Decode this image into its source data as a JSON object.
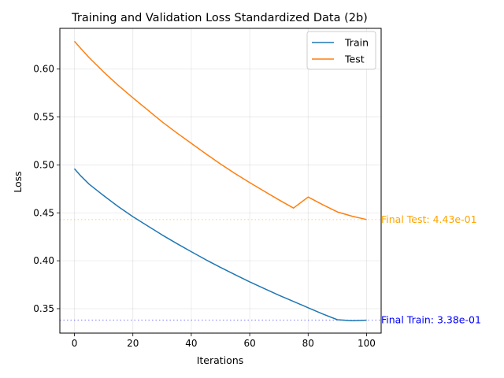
{
  "chart_data": {
    "type": "line",
    "title": "Training and Validation Loss Standardized Data (2b)",
    "xlabel": "Iterations",
    "ylabel": "Loss",
    "xlim": [
      -5,
      105
    ],
    "ylim": [
      0.3245,
      0.6425
    ],
    "xticks": [
      0,
      20,
      40,
      60,
      80,
      100
    ],
    "xtick_labels": [
      "0",
      "20",
      "40",
      "60",
      "80",
      "100"
    ],
    "yticks": [
      0.35,
      0.4,
      0.45,
      0.5,
      0.55,
      0.6
    ],
    "ytick_labels": [
      "0.35",
      "0.40",
      "0.45",
      "0.50",
      "0.55",
      "0.60"
    ],
    "grid": true,
    "legend_position": "upper right",
    "series": [
      {
        "name": "Train",
        "color": "#1f77b4",
        "x": [
          0,
          2,
          5,
          10,
          15,
          20,
          25,
          30,
          35,
          40,
          45,
          50,
          55,
          60,
          65,
          70,
          75,
          80,
          85,
          90,
          95,
          100
        ],
        "y": [
          0.496,
          0.489,
          0.48,
          0.468,
          0.4565,
          0.446,
          0.4365,
          0.427,
          0.418,
          0.4095,
          0.401,
          0.393,
          0.3855,
          0.378,
          0.371,
          0.364,
          0.3575,
          0.351,
          0.3445,
          0.3385,
          0.3375,
          0.338
        ]
      },
      {
        "name": "Test",
        "color": "#ff7f0e",
        "x": [
          0,
          2,
          5,
          10,
          15,
          20,
          25,
          30,
          35,
          40,
          45,
          50,
          55,
          60,
          65,
          70,
          75,
          80,
          85,
          90,
          95,
          100
        ],
        "y": [
          0.629,
          0.622,
          0.612,
          0.597,
          0.583,
          0.57,
          0.5575,
          0.545,
          0.5335,
          0.5225,
          0.5115,
          0.501,
          0.491,
          0.4815,
          0.4725,
          0.4635,
          0.455,
          0.4665,
          0.4585,
          0.451,
          0.4465,
          0.443
        ]
      }
    ],
    "reference_lines": [
      {
        "name": "final-train",
        "y": 0.338,
        "color": "#0000ff",
        "style": "dotted",
        "label": "Final Train: 3.38e-01"
      },
      {
        "name": "final-test",
        "y": 0.443,
        "color": "#ffa500",
        "style": "dotted",
        "label": "Final Test: 4.43e-01"
      }
    ]
  }
}
